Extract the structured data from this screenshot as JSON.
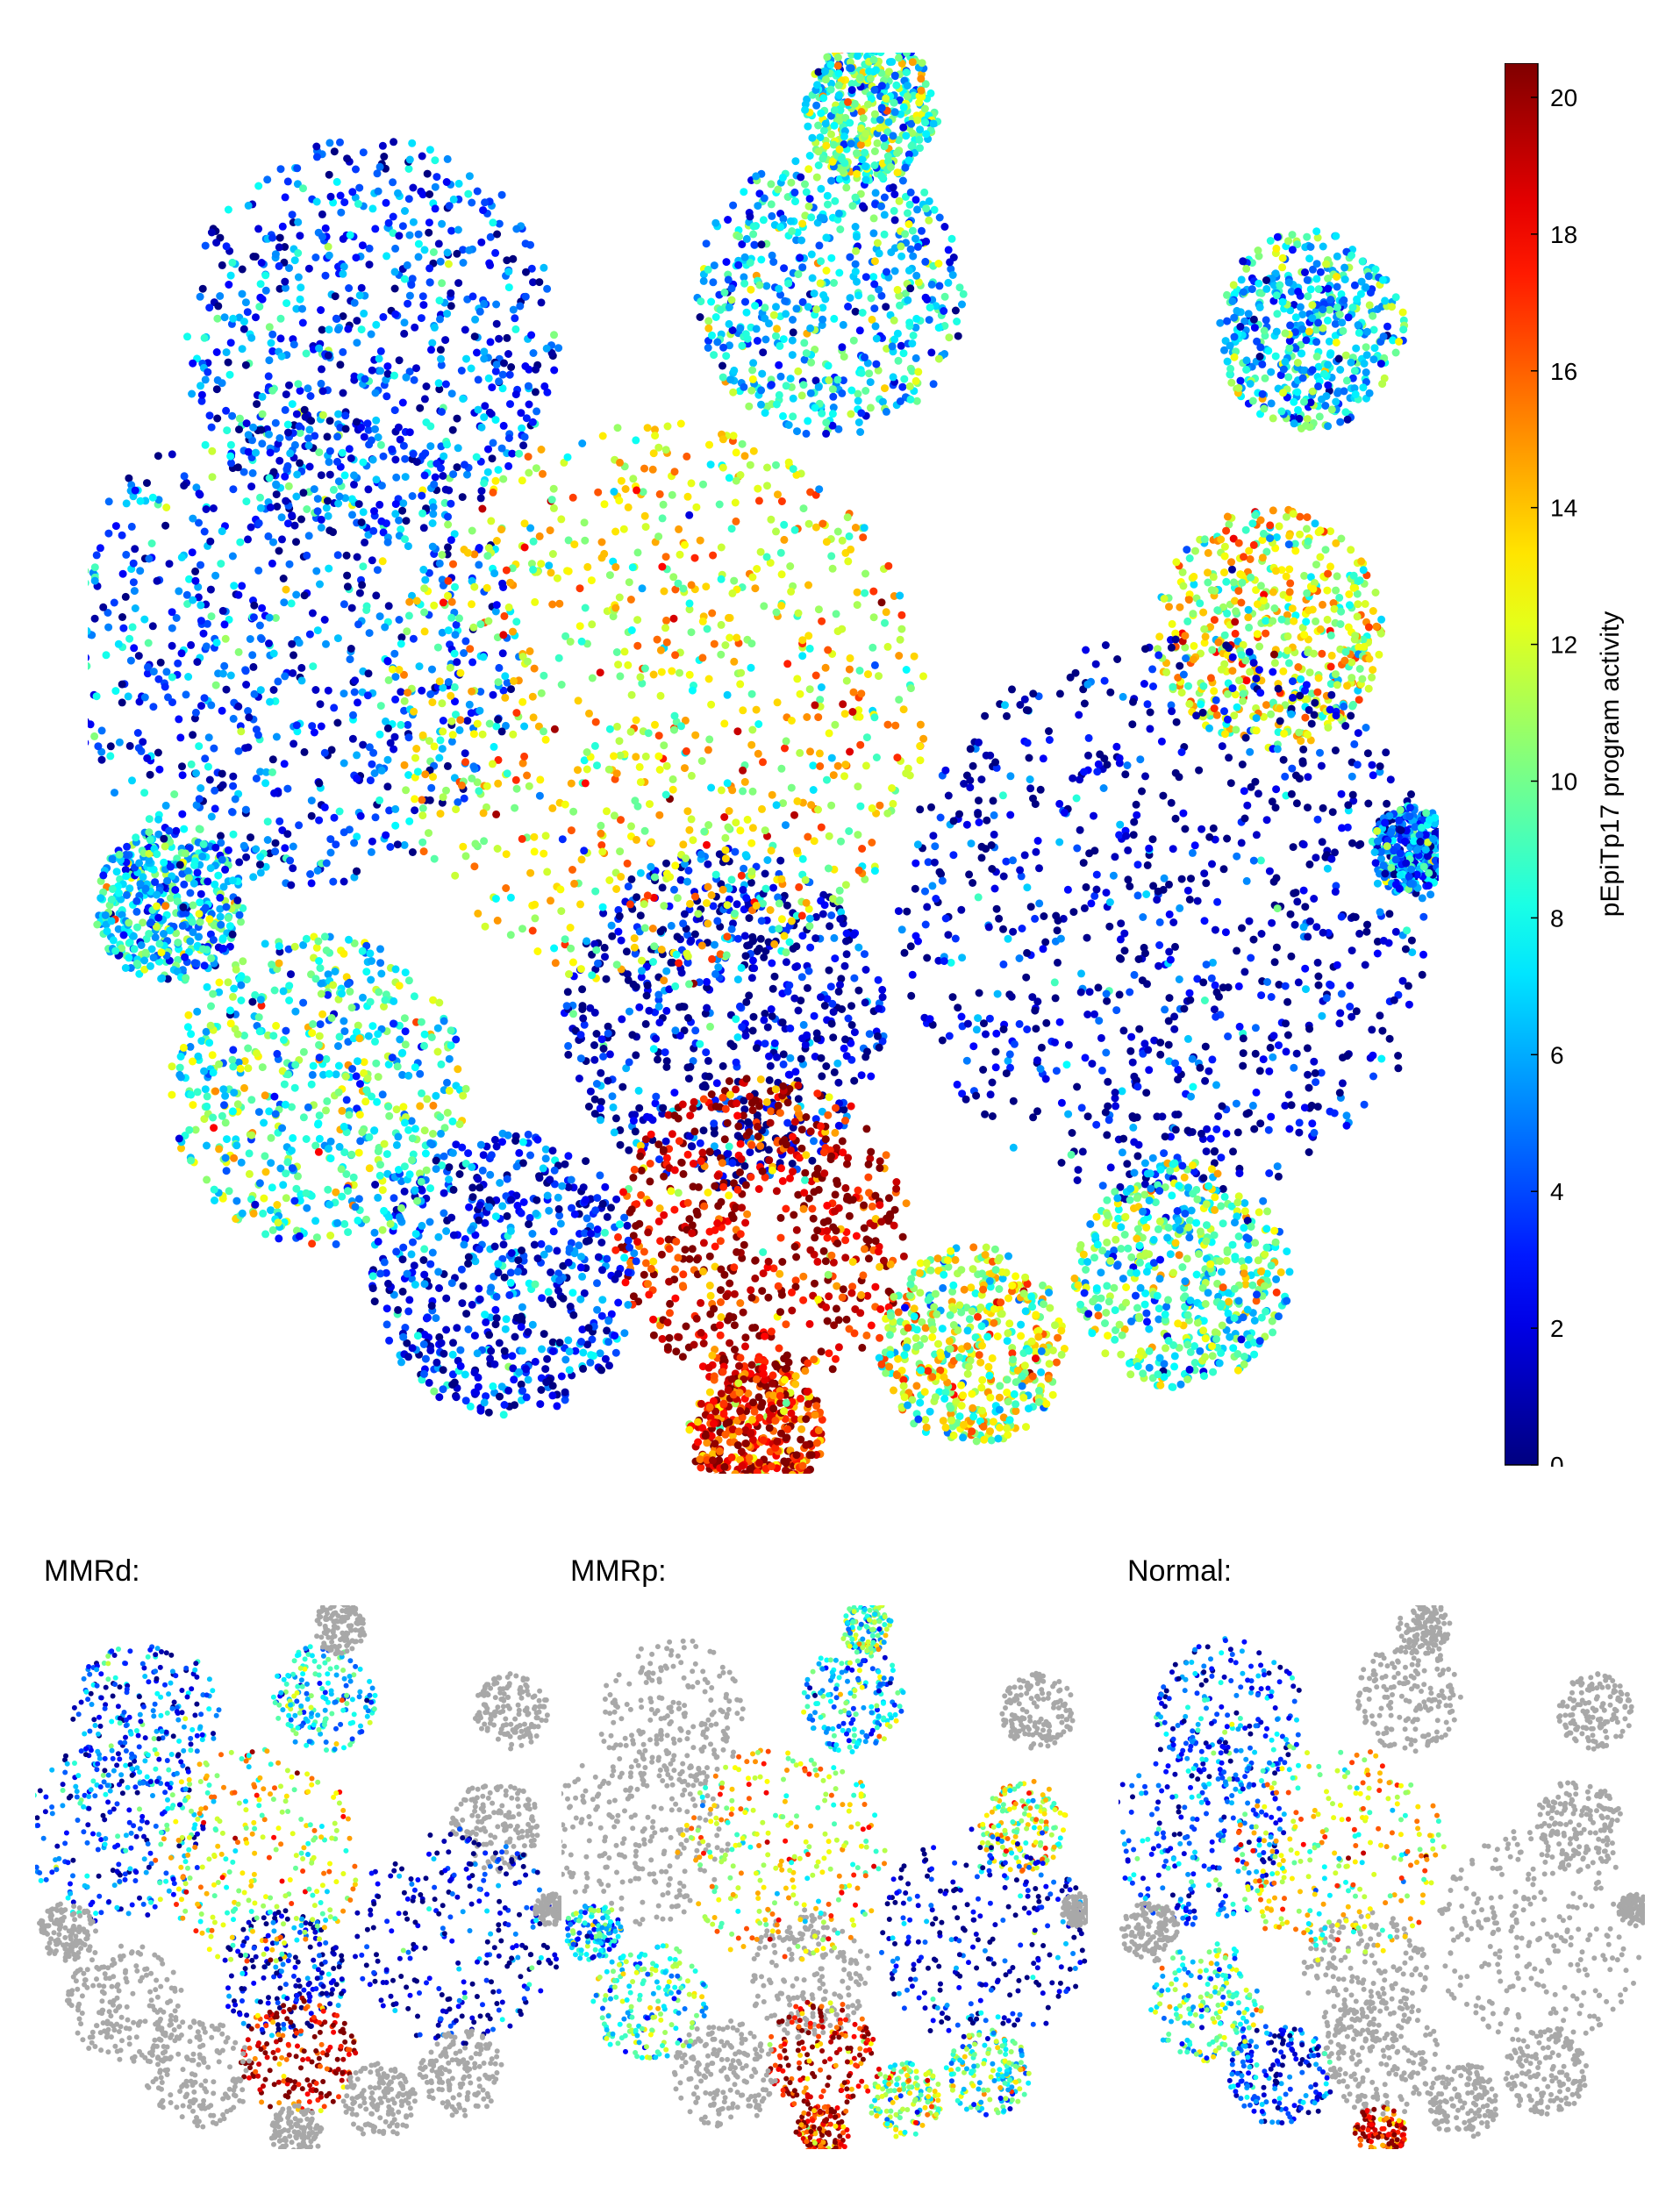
{
  "chart_data": [
    {
      "type": "scatter",
      "title": "",
      "xlabel": "",
      "ylabel": "",
      "colorbar": {
        "label": "pEpiTp17 program activity",
        "range": [
          0,
          20.5
        ],
        "ticks": [
          0,
          2,
          4,
          6,
          8,
          10,
          12,
          14,
          16,
          18,
          20
        ],
        "colormap": "jet"
      },
      "clusters": [
        {
          "id": "top-right-blob",
          "center": [
            0.905,
            0.195
          ],
          "radius": 0.07,
          "mean_value": 7
        },
        {
          "id": "right-upper",
          "center": [
            0.875,
            0.405
          ],
          "radius": 0.085,
          "mean_value": 12
        },
        {
          "id": "big-dark-right",
          "center": [
            0.8,
            0.61
          ],
          "radius": 0.2,
          "mean_value": 1.5
        },
        {
          "id": "center-dark",
          "center": [
            0.47,
            0.68
          ],
          "radius": 0.12,
          "mean_value": 1.5
        },
        {
          "id": "center-red-bottom",
          "center": [
            0.5,
            0.83
          ],
          "radius": 0.11,
          "mean_value": 19
        },
        {
          "id": "left-upper-blue",
          "center": [
            0.21,
            0.2
          ],
          "radius": 0.14,
          "mean_value": 4
        },
        {
          "id": "left-big-blue",
          "center": [
            0.15,
            0.42
          ],
          "radius": 0.17,
          "mean_value": 4
        },
        {
          "id": "center-yellow",
          "center": [
            0.42,
            0.46
          ],
          "radius": 0.2,
          "mean_value": 12.5
        },
        {
          "id": "bottom-left-blue",
          "center": [
            0.31,
            0.86
          ],
          "radius": 0.1,
          "mean_value": 3
        },
        {
          "id": "small-left",
          "center": [
            0.06,
            0.6
          ],
          "radius": 0.055,
          "mean_value": 7
        },
        {
          "id": "left-mid-lower",
          "center": [
            0.17,
            0.73
          ],
          "radius": 0.11,
          "mean_value": 8.5
        },
        {
          "id": "top-middle",
          "center": [
            0.55,
            0.17
          ],
          "radius": 0.1,
          "mean_value": 7
        },
        {
          "id": "top-small",
          "center": [
            0.58,
            0.04
          ],
          "radius": 0.05,
          "mean_value": 9
        },
        {
          "id": "bottom-middle-green",
          "center": [
            0.655,
            0.91
          ],
          "radius": 0.07,
          "mean_value": 11
        },
        {
          "id": "bottom-red-strip",
          "center": [
            0.495,
            0.97
          ],
          "radius": 0.05,
          "mean_value": 18
        },
        {
          "id": "right-lower",
          "center": [
            0.81,
            0.86
          ],
          "radius": 0.08,
          "mean_value": 9
        },
        {
          "id": "far-right-small",
          "center": [
            0.98,
            0.56
          ],
          "radius": 0.03,
          "mean_value": 5
        }
      ]
    },
    {
      "type": "scatter",
      "title": "MMRd:",
      "highlight_clusters": [
        "left-big-blue",
        "center-yellow",
        "center-dark",
        "big-dark-right",
        "center-red-bottom",
        "left-upper-blue",
        "top-middle"
      ],
      "background_color": "#A8A8A8"
    },
    {
      "type": "scatter",
      "title": "MMRp:",
      "highlight_clusters": [
        "center-yellow",
        "big-dark-right",
        "center-red-bottom",
        "top-middle",
        "top-small",
        "small-left",
        "left-mid-lower",
        "right-upper",
        "right-lower",
        "bottom-red-strip",
        "bottom-middle-green"
      ],
      "background_color": "#A8A8A8"
    },
    {
      "type": "scatter",
      "title": "Normal:",
      "highlight_clusters": [
        "left-upper-blue",
        "left-big-blue",
        "center-yellow",
        "left-mid-lower",
        "bottom-left-blue",
        "bottom-red-strip"
      ],
      "background_color": "#A8A8A8"
    }
  ]
}
